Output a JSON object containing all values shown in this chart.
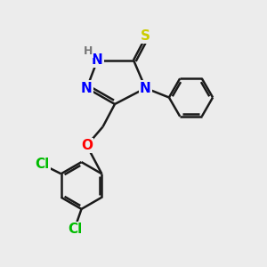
{
  "bg_color": "#ececec",
  "atom_colors": {
    "N": "#0000ff",
    "S": "#cccc00",
    "O": "#ff0000",
    "Cl": "#00bb00",
    "C": "#000000",
    "H": "#777777"
  },
  "bond_color": "#1a1a1a",
  "bond_lw": 1.8,
  "font_size": 11,
  "font_size_H": 9
}
